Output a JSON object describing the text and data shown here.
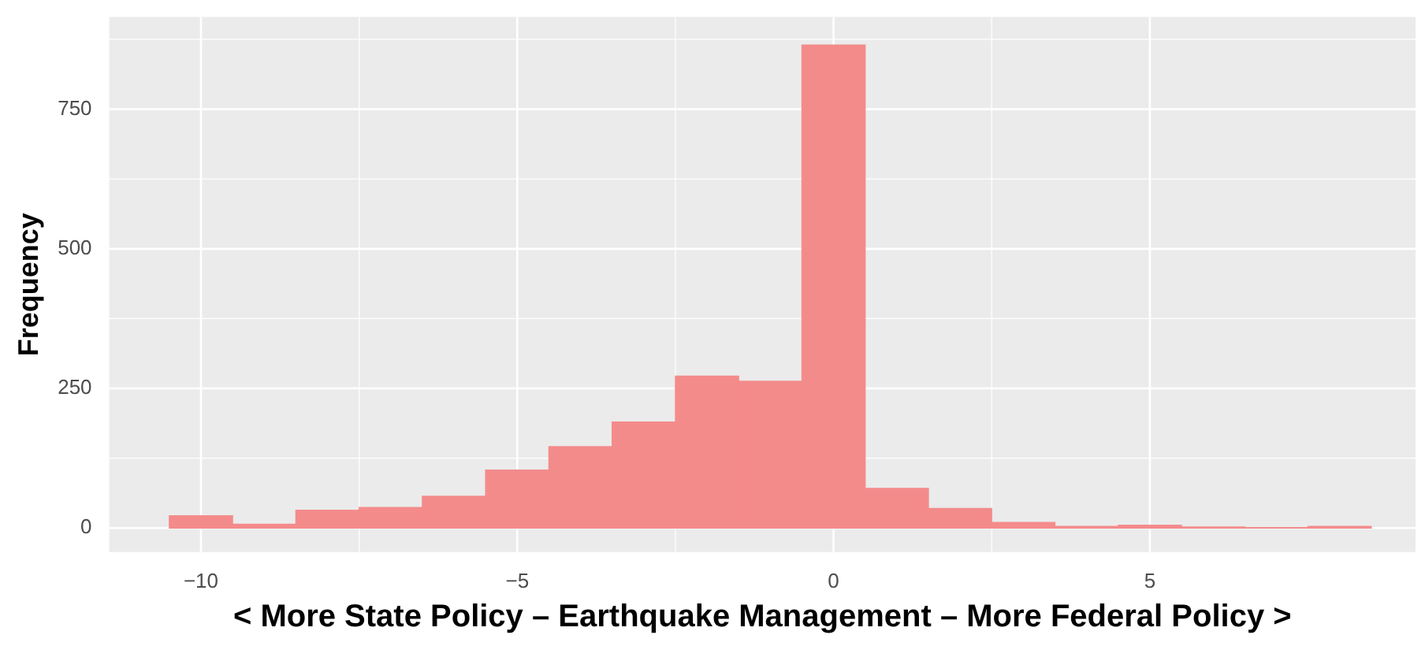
{
  "chart_data": {
    "type": "histogram",
    "xlabel": "< More State Policy – Earthquake Management – More Federal Policy >",
    "ylabel": "Frequency",
    "bins": [
      -10.5,
      -9.5,
      -8.5,
      -7.5,
      -6.5,
      -5.5,
      -4.5,
      -3.5,
      -2.5,
      -1.5,
      -0.5,
      0.5,
      1.5,
      2.5,
      3.5,
      4.5,
      5.5,
      6.5,
      7.5,
      8.5
    ],
    "values": [
      22,
      7,
      32,
      37,
      57,
      104,
      146,
      190,
      272,
      263,
      865,
      71,
      35,
      10,
      3,
      5,
      2,
      1,
      3
    ],
    "color": "#f48b8b",
    "xlim": [
      -11.45,
      9.2
    ],
    "xticks": [
      {
        "value": -10,
        "label": "−10"
      },
      {
        "value": -5,
        "label": "−5"
      },
      0,
      5
    ],
    "ylim": [
      -43,
      915
    ],
    "yticks": [
      0,
      250,
      500,
      750
    ],
    "grid": true
  }
}
